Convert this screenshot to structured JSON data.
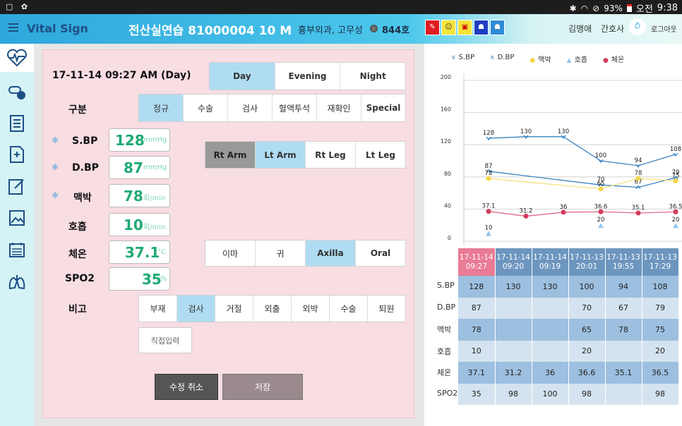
{
  "statusbar": {
    "battery": "93%",
    "ampm": "오전",
    "time": "9:38"
  },
  "header": {
    "title": "Vital Sign",
    "patient": "전산실연습 81000004 10 M",
    "dept": "흉부외과, 고무성",
    "room": "844호",
    "user": "김맹애",
    "role": "간호사",
    "logout": "로그아웃"
  },
  "form": {
    "date": "17-11-14 09:27 AM (Day)",
    "shifts": [
      "Day",
      "Evening",
      "Night"
    ],
    "category_label": "구분",
    "categories": [
      "정규",
      "수술",
      "검사",
      "혈액투석",
      "재확인",
      "Special"
    ],
    "vitals": [
      {
        "label": "S.BP",
        "value": "128",
        "unit": "mmHg"
      },
      {
        "label": "D.BP",
        "value": "87",
        "unit": "mmHg"
      },
      {
        "label": "맥박",
        "value": "78",
        "unit": "회/min"
      },
      {
        "label": "호흡",
        "value": "10",
        "unit": "회/min"
      },
      {
        "label": "체온",
        "value": "37.1",
        "unit": "°C"
      },
      {
        "label": "SPO2",
        "value": "35",
        "unit": "%"
      }
    ],
    "limbs": [
      "Rt Arm",
      "Lt Arm",
      "Rt Leg",
      "Lt Leg"
    ],
    "temp_sites": [
      "이마",
      "귀",
      "Axilla",
      "Oral"
    ],
    "remark_label": "비고",
    "remarks": [
      "부재",
      "검사",
      "거절",
      "외출",
      "외박",
      "수술",
      "퇴원"
    ],
    "direct_input": "직접입력",
    "cancel": "수정 취소",
    "save": "저장"
  },
  "chart_data": {
    "type": "line",
    "legend": [
      "S.BP",
      "D.BP",
      "맥박",
      "호흡",
      "체온"
    ],
    "yticks": [
      200,
      160,
      120,
      80,
      40,
      0
    ],
    "ylim": [
      0,
      200
    ],
    "colors": {
      "S.BP": "#3a84c0",
      "D.BP": "#3a84c0",
      "맥박": "#f2d64a",
      "호흡": "#8ec6f0",
      "체온": "#d23a5c"
    },
    "x": [
      "17-11-14 09:27",
      "17-11-14 09:20",
      "17-11-14 09:19",
      "17-11-13 20:01",
      "17-11-13 19:55",
      "17-11-13 17:29"
    ],
    "series": [
      {
        "name": "S.BP",
        "values": [
          128,
          130,
          130,
          100,
          94,
          108
        ]
      },
      {
        "name": "D.BP",
        "values": [
          87,
          null,
          null,
          70,
          67,
          79
        ]
      },
      {
        "name": "맥박",
        "values": [
          78,
          null,
          null,
          65,
          78,
          75
        ]
      },
      {
        "name": "호흡",
        "values": [
          10,
          null,
          null,
          20,
          null,
          20
        ]
      },
      {
        "name": "체온",
        "values": [
          37.1,
          31.2,
          36,
          36.6,
          35.1,
          36.5
        ]
      }
    ]
  },
  "table": {
    "headers": [
      [
        "17-11-14",
        "09:27"
      ],
      [
        "17-11-14",
        "09:20"
      ],
      [
        "17-11-14",
        "09:19"
      ],
      [
        "17-11-13",
        "20:01"
      ],
      [
        "17-11-13",
        "19:55"
      ],
      [
        "17-11-13",
        "17:29"
      ]
    ],
    "rows": [
      {
        "label": "S.BP",
        "cells": [
          "128",
          "130",
          "130",
          "100",
          "94",
          "108"
        ]
      },
      {
        "label": "D.BP",
        "cells": [
          "87",
          "",
          "",
          "70",
          "67",
          "79"
        ]
      },
      {
        "label": "맥박",
        "cells": [
          "78",
          "",
          "",
          "65",
          "78",
          "75"
        ]
      },
      {
        "label": "호흡",
        "cells": [
          "10",
          "",
          "",
          "20",
          "",
          "20"
        ]
      },
      {
        "label": "체온",
        "cells": [
          "37.1",
          "31.2",
          "36",
          "36.6",
          "35.1",
          "36.5"
        ]
      },
      {
        "label": "SPO2",
        "cells": [
          "35",
          "98",
          "100",
          "98",
          "",
          "98"
        ]
      }
    ]
  }
}
